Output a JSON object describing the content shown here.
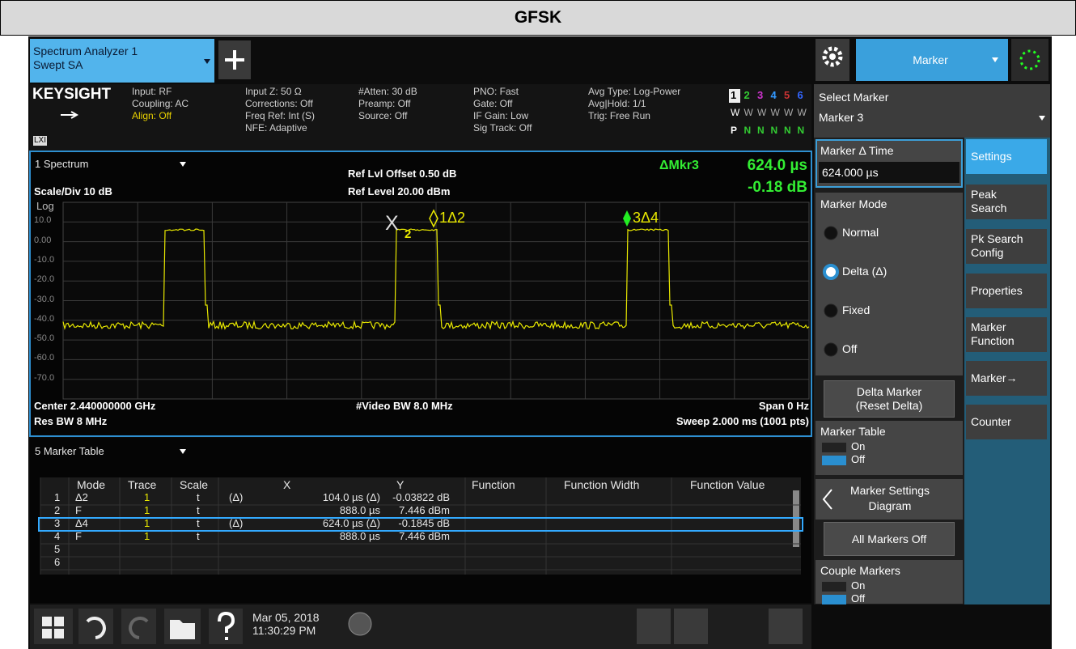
{
  "header": {
    "title": "GFSK"
  },
  "instrument": {
    "tab": {
      "name": "Spectrum Analyzer 1",
      "mode": "Swept SA"
    },
    "menu": "Marker",
    "badge": "LXI",
    "status": {
      "brand": "KEYSIGHT",
      "input": [
        "Input: RF",
        "Coupling: AC",
        "Align: Off"
      ],
      "input_z": [
        "Input Z: 50 Ω",
        "Corrections: Off",
        "Freq Ref: Int (S)",
        "NFE: Adaptive"
      ],
      "atten": [
        "#Atten: 30 dB",
        "Preamp: Off",
        "Source: Off"
      ],
      "pno": [
        "PNO: Fast",
        "Gate: Off",
        "IF Gain: Low",
        "Sig Track: Off"
      ],
      "avg": [
        "Avg Type: Log-Power",
        "Avg|Hold: 1/1",
        "Trig: Free Run"
      ],
      "traces": [
        "1",
        "2",
        "3",
        "4",
        "5",
        "6"
      ],
      "trace_types": [
        "W",
        "W",
        "W",
        "W",
        "W",
        "W"
      ],
      "detectors": [
        "P",
        "N",
        "N",
        "N",
        "N",
        "N"
      ]
    }
  },
  "plot": {
    "window": "1 Spectrum",
    "scale": "Scale/Div 10 dB",
    "log": "Log",
    "ref_offset": "Ref Lvl Offset 0.50 dB",
    "ref_level": "Ref Level 20.00 dBm",
    "marker_readout": {
      "label": "ΔMkr3",
      "x": "624.0 µs",
      "y": "-0.18 dB"
    },
    "y_labels": [
      "10.0",
      "0.00",
      "-10.0",
      "-20.0",
      "-30.0",
      "-40.0",
      "-50.0",
      "-60.0",
      "-70.0"
    ],
    "markers": [
      "X",
      "2",
      "1Δ2",
      "3Δ4"
    ],
    "center": "Center 2.440000000 GHz",
    "res_bw": "Res BW 8 MHz",
    "video_bw": "#Video BW 8.0 MHz",
    "span": "Span 0 Hz",
    "sweep": "Sweep 2.000 ms (1001 pts)"
  },
  "marker_table": {
    "window": "5 Marker Table",
    "columns": [
      "Mode",
      "Trace",
      "Scale",
      "X",
      "Y",
      "Function",
      "Function Width",
      "Function Value"
    ],
    "rows": [
      {
        "n": "1",
        "mode": "Δ2",
        "trace": "1",
        "scale": "t",
        "ref": "(Δ)",
        "x": "104.0 µs (Δ)",
        "y": "-0.03822 dB"
      },
      {
        "n": "2",
        "mode": "F",
        "trace": "1",
        "scale": "t",
        "x": "888.0 µs",
        "y": "7.446 dBm"
      },
      {
        "n": "3",
        "mode": "Δ4",
        "trace": "1",
        "scale": "t",
        "ref": "(Δ)",
        "x": "624.0 µs (Δ)",
        "y": "-0.1845 dB"
      },
      {
        "n": "4",
        "mode": "F",
        "trace": "1",
        "scale": "t",
        "x": "888.0 µs",
        "y": "7.446 dBm"
      },
      {
        "n": "5"
      },
      {
        "n": "6"
      }
    ]
  },
  "side": {
    "select_marker": {
      "label": "Select Marker",
      "value": "Marker 3"
    },
    "delta_time": {
      "label": "Marker Δ Time",
      "value": "624.000 µs"
    },
    "mode": {
      "label": "Marker Mode",
      "options": [
        "Normal",
        "Delta (Δ)",
        "Fixed",
        "Off"
      ]
    },
    "reset_delta": [
      "Delta Marker",
      "(Reset Delta)"
    ],
    "table": {
      "label": "Marker Table",
      "options": [
        "On",
        "Off"
      ]
    },
    "settings_diagram": [
      "Marker Settings",
      "Diagram"
    ],
    "all_off": "All Markers Off",
    "couple": {
      "label": "Couple Markers",
      "options": [
        "On",
        "Off"
      ]
    }
  },
  "tabs": [
    [
      "Settings"
    ],
    [
      "Peak",
      "Search"
    ],
    [
      "Pk Search",
      "Config"
    ],
    [
      "Properties"
    ],
    [
      "Marker",
      "Function"
    ],
    [
      "Marker→"
    ],
    [
      "Counter"
    ]
  ],
  "taskbar": {
    "date": "Mar 05, 2018",
    "time": "11:30:29 PM"
  }
}
